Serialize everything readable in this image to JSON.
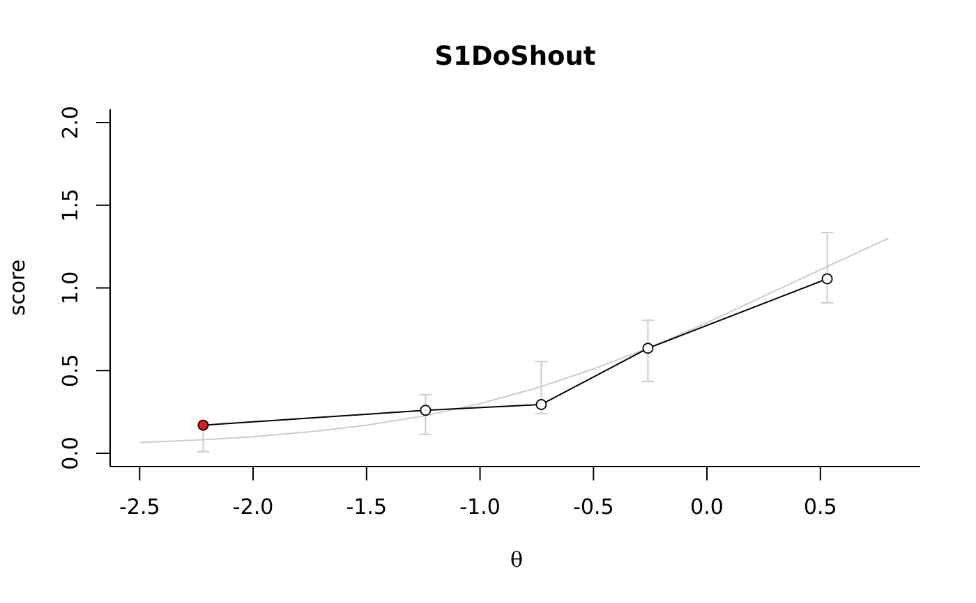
{
  "chart_data": {
    "type": "line",
    "title": "S1DoShout",
    "xlabel": "θ",
    "ylabel": "score",
    "xlim": [
      -2.63,
      0.94
    ],
    "ylim": [
      -0.08,
      2.08
    ],
    "x_ticks": [
      "-2.5",
      "-2.0",
      "-1.5",
      "-1.0",
      "-0.5",
      "0.0",
      "0.5"
    ],
    "x_tick_values": [
      -2.5,
      -2.0,
      -1.5,
      -1.0,
      -0.5,
      0.0,
      0.5
    ],
    "y_ticks": [
      "0.0",
      "0.5",
      "1.0",
      "1.5",
      "2.0"
    ],
    "y_tick_values": [
      0.0,
      0.5,
      1.0,
      1.5,
      2.0
    ],
    "grid": false,
    "series": [
      {
        "kind": "observed",
        "x": [
          -2.22,
          -1.24,
          -0.73,
          -0.26,
          0.53
        ],
        "y": [
          0.17,
          0.26,
          0.295,
          0.635,
          1.055
        ],
        "err_low": [
          0.01,
          0.115,
          0.24,
          0.435,
          0.91
        ],
        "err_high": [
          0.17,
          0.355,
          0.555,
          0.805,
          1.335
        ],
        "highlight_index": 0,
        "line_color": "#000000",
        "highlight_color": "#e41a1c"
      },
      {
        "kind": "expected",
        "x": [
          -2.5,
          -2.25,
          -2.0,
          -1.75,
          -1.5,
          -1.25,
          -1.0,
          -0.75,
          -0.5,
          -0.25,
          0.0,
          0.25,
          0.5,
          0.8
        ],
        "y": [
          0.065,
          0.08,
          0.1,
          0.13,
          0.17,
          0.225,
          0.3,
          0.395,
          0.51,
          0.64,
          0.79,
          0.95,
          1.11,
          1.3
        ],
        "line_color": "#cccccc"
      }
    ],
    "errorbar_color": "#cccccc"
  }
}
